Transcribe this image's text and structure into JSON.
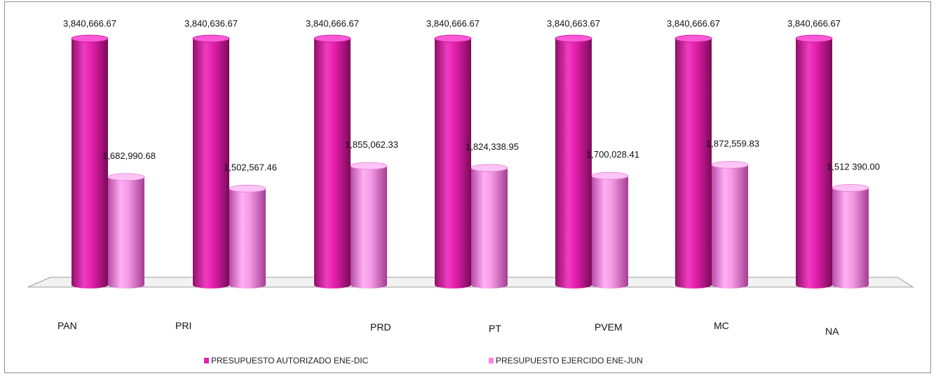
{
  "chart_data": {
    "type": "bar",
    "categories": [
      "PAN",
      "PRI",
      "PRD",
      "PT",
      "PVEM",
      "MC",
      "NA"
    ],
    "series": [
      {
        "name": "PRESUPUESTO AUTORIZADO ENE-DIC",
        "color": "#e61fae",
        "values": [
          3840666.67,
          3840636.67,
          3840666.67,
          3840666.67,
          3840663.67,
          3840666.67,
          3840666.67
        ],
        "labels": [
          "3,840,666.67",
          "3,840,636.67",
          "3,840,666.67",
          "3,840,666.67",
          "3,840,663.67",
          "3,840,666.67",
          "3,840,666.67"
        ]
      },
      {
        "name": "PRESUPUESTO EJERCIDO ENE-JUN",
        "color": "#ff80ee",
        "values": [
          1682990.68,
          1502567.46,
          1855062.33,
          1824338.95,
          1700028.41,
          1872559.83,
          1512390.0
        ],
        "labels": [
          "1,682,990.68",
          "1,502,567.46",
          "1,855,062.33",
          "1,824,338.95",
          "1,700,028.41",
          "1,872,559.83",
          "1,512 390.00"
        ]
      }
    ],
    "title": "",
    "xlabel": "",
    "ylabel": "",
    "ylim": [
      0,
      4000000
    ],
    "grid": false,
    "legend": "bottom"
  }
}
